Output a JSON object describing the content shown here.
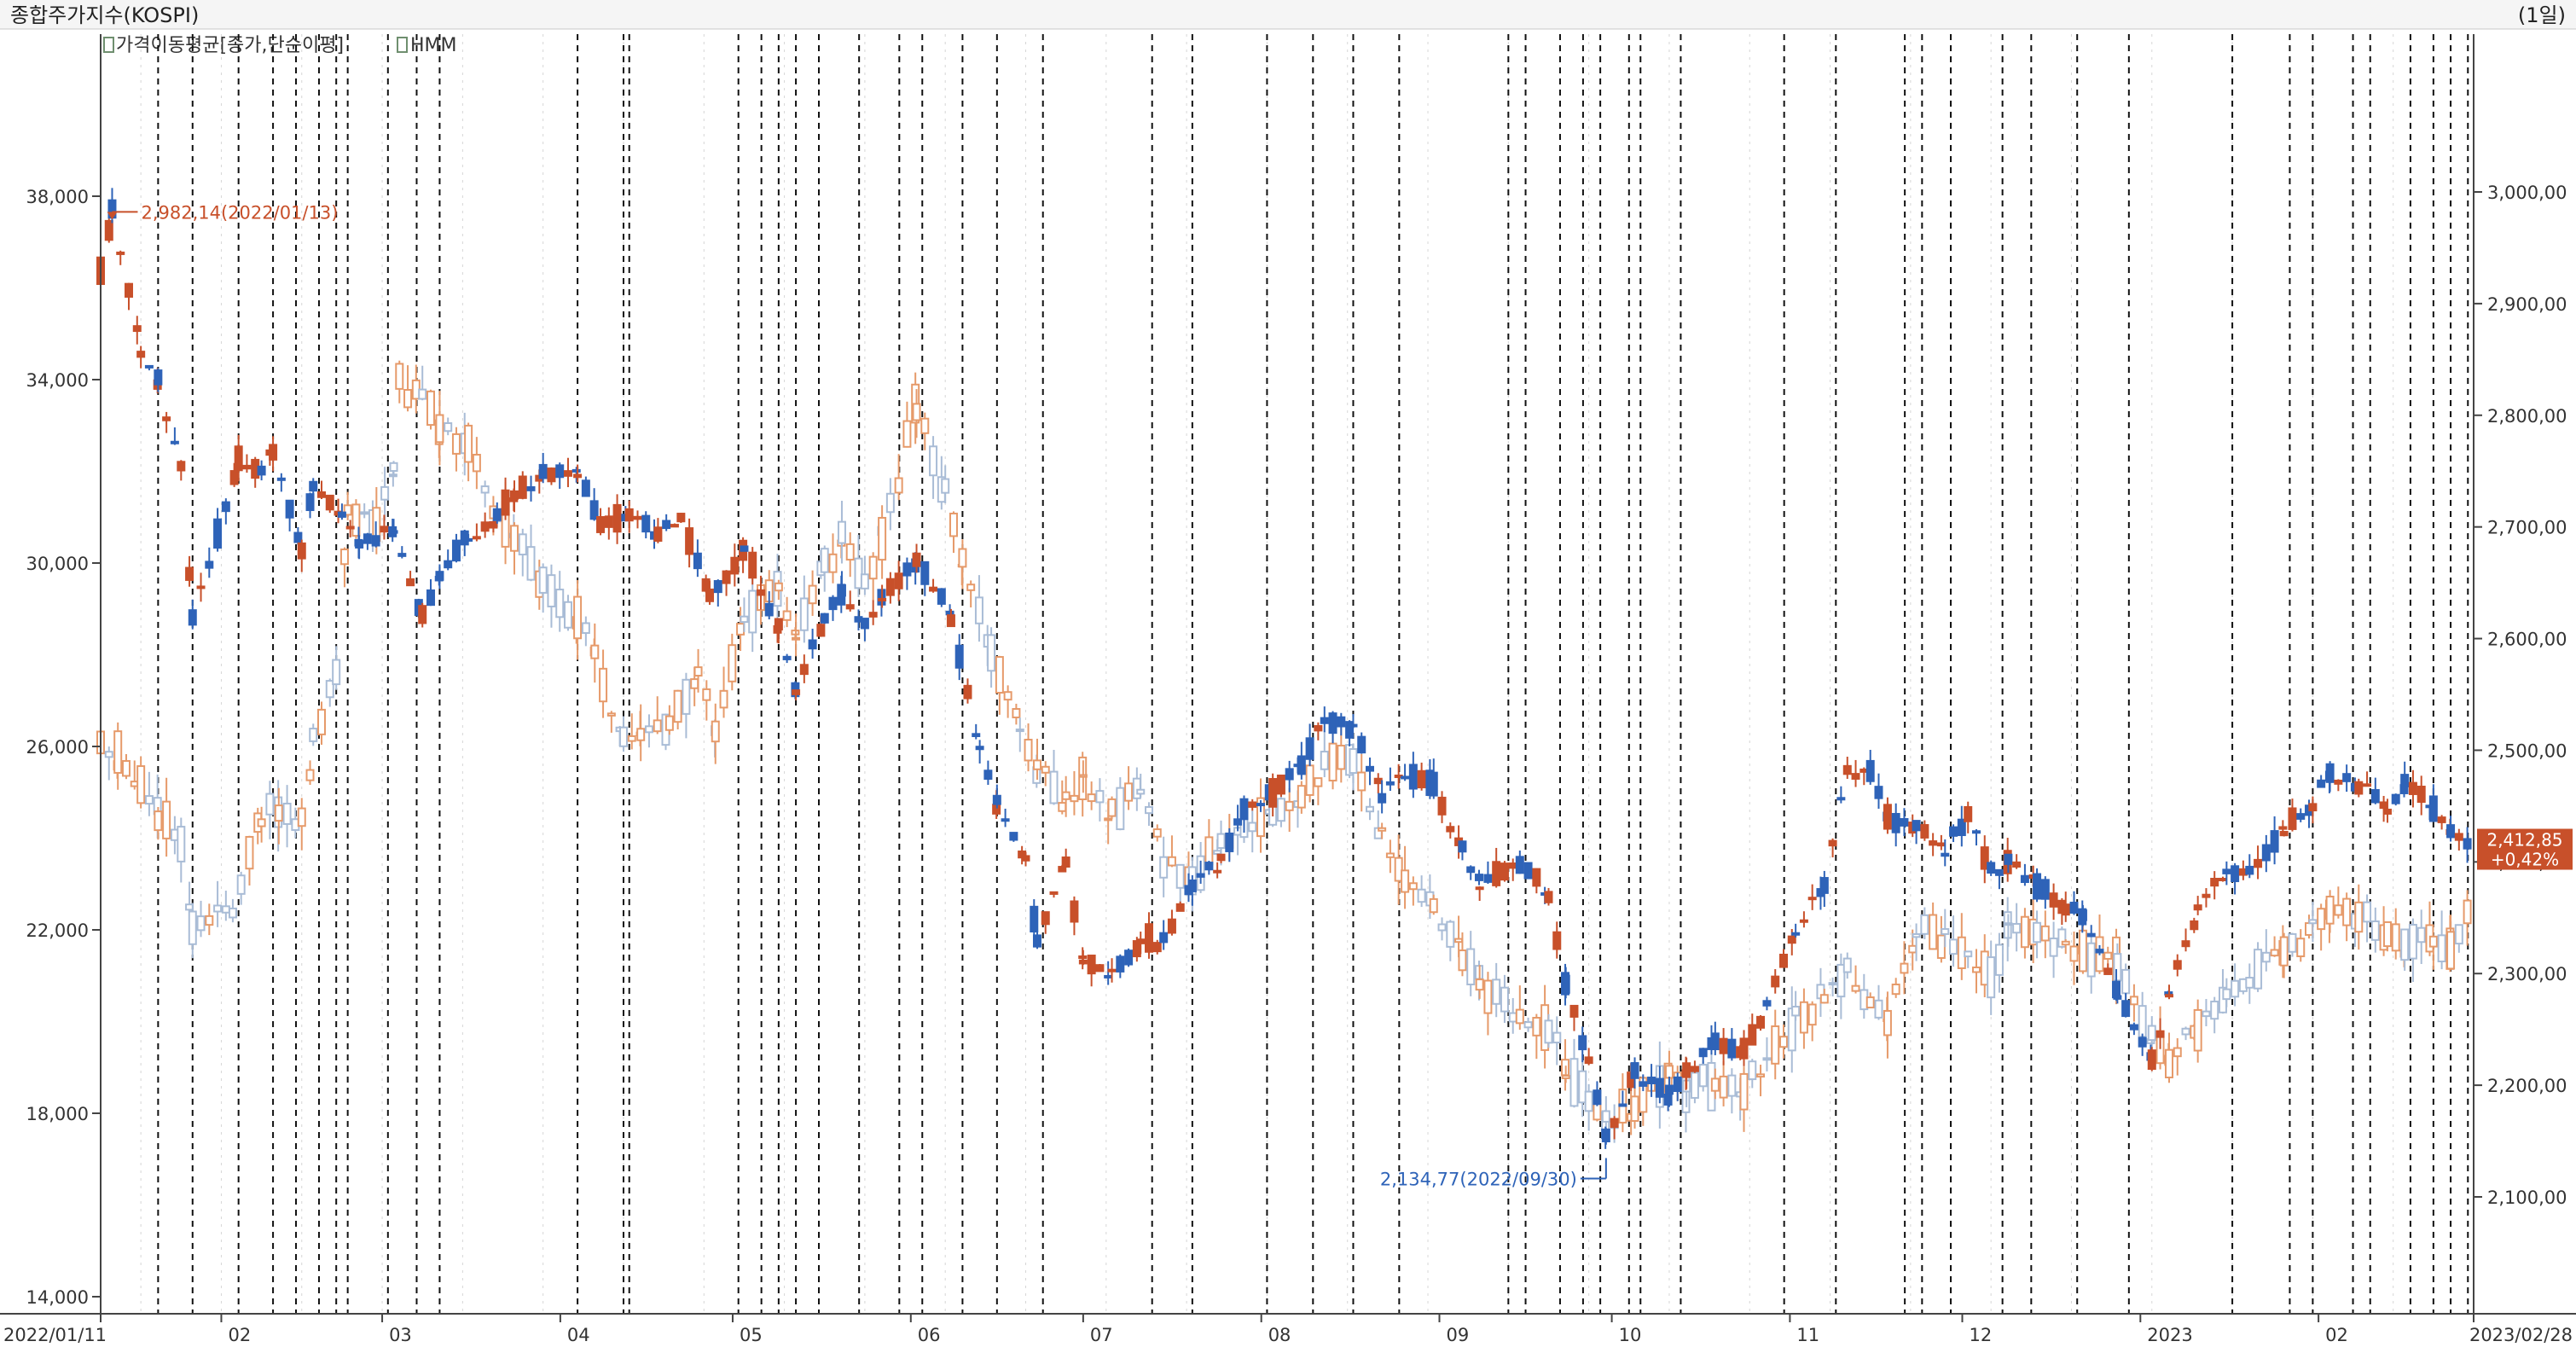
{
  "header": {
    "title": "종합주가지수(KOSPI)",
    "period": "(1일)"
  },
  "legend": {
    "items": [
      {
        "label": "가격이동평균[종가,단순이평]",
        "color": "#8aa0b8"
      },
      {
        "label": "HMM",
        "color": "#8aa0b8"
      }
    ]
  },
  "colors": {
    "up": "#c8502a",
    "down": "#2e63b8",
    "hmm_up": "#e69a6a",
    "hmm_down": "#a9bcd6",
    "event_line": "#111111",
    "grid_line": "#d6d6d6"
  },
  "chart_data": {
    "type": "line",
    "title": "종합주가지수(KOSPI)",
    "x_start": "2022/01/11",
    "x_end": "2023/02/28",
    "x_labels": [
      "2022/01/11",
      "02",
      "03",
      "04",
      "05",
      "06",
      "07",
      "08",
      "09",
      "10",
      "11",
      "12",
      "2023",
      "02",
      "2023/02/28"
    ],
    "left_axis": {
      "ticks": [
        "38,000",
        "34,000",
        "30,000",
        "26,000",
        "22,000",
        "18,000",
        "14,000"
      ],
      "ylim": [
        14000,
        38000
      ]
    },
    "right_axis": {
      "ticks": [
        "3,000,00",
        "2,900,00",
        "2,800,00",
        "2,700,00",
        "2,600,00",
        "2,500,00",
        "2,400,00",
        "2,300,00",
        "2,200,00",
        "2,100,00"
      ],
      "ylim": [
        2100,
        3000
      ]
    },
    "annotations": {
      "high": {
        "label": "2,982,14(2022/01/13)",
        "date": "2022/01/13",
        "value": 2982.14
      },
      "low": {
        "label": "2,134,77(2022/09/30)",
        "date": "2022/09/30",
        "value": 2134.77
      },
      "last": {
        "value": "2,412,85",
        "change": "+0,42%"
      }
    },
    "series": [
      {
        "name": "종합주가지수(KOSPI)",
        "axis": "right",
        "points": [
          [
            "2022/01/11",
            2927
          ],
          [
            "2022/01/13",
            2982
          ],
          [
            "2022/01/18",
            2860
          ],
          [
            "2022/01/21",
            2830
          ],
          [
            "2022/01/25",
            2750
          ],
          [
            "2022/01/27",
            2620
          ],
          [
            "2022/02/04",
            2760
          ],
          [
            "2022/02/08",
            2750
          ],
          [
            "2022/02/10",
            2770
          ],
          [
            "2022/02/15",
            2680
          ],
          [
            "2022/02/17",
            2740
          ],
          [
            "2022/02/22",
            2710
          ],
          [
            "2022/02/25",
            2680
          ],
          [
            "2022/03/03",
            2700
          ],
          [
            "2022/03/08",
            2620
          ],
          [
            "2022/03/11",
            2660
          ],
          [
            "2022/03/16",
            2690
          ],
          [
            "2022/03/21",
            2710
          ],
          [
            "2022/03/24",
            2730
          ],
          [
            "2022/03/29",
            2745
          ],
          [
            "2022/04/04",
            2750
          ],
          [
            "2022/04/08",
            2700
          ],
          [
            "2022/04/13",
            2710
          ],
          [
            "2022/04/18",
            2695
          ],
          [
            "2022/04/22",
            2705
          ],
          [
            "2022/04/27",
            2640
          ],
          [
            "2022/05/03",
            2680
          ],
          [
            "2022/05/09",
            2610
          ],
          [
            "2022/05/12",
            2550
          ],
          [
            "2022/05/17",
            2620
          ],
          [
            "2022/05/20",
            2640
          ],
          [
            "2022/05/24",
            2610
          ],
          [
            "2022/05/27",
            2640
          ],
          [
            "2022/06/02",
            2670
          ],
          [
            "2022/06/08",
            2620
          ],
          [
            "2022/06/13",
            2500
          ],
          [
            "2022/06/16",
            2450
          ],
          [
            "2022/06/21",
            2400
          ],
          [
            "2022/06/23",
            2330
          ],
          [
            "2022/06/28",
            2400
          ],
          [
            "2022/07/01",
            2310
          ],
          [
            "2022/07/06",
            2300
          ],
          [
            "2022/07/11",
            2330
          ],
          [
            "2022/07/15",
            2330
          ],
          [
            "2022/07/20",
            2380
          ],
          [
            "2022/07/25",
            2400
          ],
          [
            "2022/07/29",
            2450
          ],
          [
            "2022/08/03",
            2460
          ],
          [
            "2022/08/08",
            2490
          ],
          [
            "2022/08/12",
            2525
          ],
          [
            "2022/08/17",
            2520
          ],
          [
            "2022/08/22",
            2460
          ],
          [
            "2022/08/26",
            2480
          ],
          [
            "2022/08/31",
            2470
          ],
          [
            "2022/09/05",
            2410
          ],
          [
            "2022/09/08",
            2380
          ],
          [
            "2022/09/15",
            2400
          ],
          [
            "2022/09/20",
            2370
          ],
          [
            "2022/09/23",
            2290
          ],
          [
            "2022/09/27",
            2220
          ],
          [
            "2022/09/30",
            2155
          ],
          [
            "2022/10/05",
            2210
          ],
          [
            "2022/10/11",
            2190
          ],
          [
            "2022/10/14",
            2210
          ],
          [
            "2022/10/19",
            2240
          ],
          [
            "2022/10/24",
            2230
          ],
          [
            "2022/10/28",
            2270
          ],
          [
            "2022/11/02",
            2340
          ],
          [
            "2022/11/07",
            2380
          ],
          [
            "2022/11/11",
            2480
          ],
          [
            "2022/11/15",
            2480
          ],
          [
            "2022/11/18",
            2440
          ],
          [
            "2022/11/23",
            2430
          ],
          [
            "2022/11/28",
            2410
          ],
          [
            "2022/12/02",
            2440
          ],
          [
            "2022/12/06",
            2390
          ],
          [
            "2022/12/09",
            2400
          ],
          [
            "2022/12/14",
            2380
          ],
          [
            "2022/12/19",
            2360
          ],
          [
            "2022/12/22",
            2350
          ],
          [
            "2022/12/28",
            2280
          ],
          [
            "2023/01/03",
            2220
          ],
          [
            "2023/01/06",
            2280
          ],
          [
            "2023/01/11",
            2360
          ],
          [
            "2023/01/16",
            2390
          ],
          [
            "2023/01/20",
            2395
          ],
          [
            "2023/01/26",
            2430
          ],
          [
            "2023/01/31",
            2450
          ],
          [
            "2023/02/03",
            2480
          ],
          [
            "2023/02/08",
            2470
          ],
          [
            "2023/02/13",
            2450
          ],
          [
            "2023/02/16",
            2470
          ],
          [
            "2023/02/21",
            2450
          ],
          [
            "2023/02/24",
            2425
          ],
          [
            "2023/02/28",
            2413
          ]
        ]
      },
      {
        "name": "HMM",
        "axis": "left",
        "points": [
          [
            "2022/01/11",
            26000
          ],
          [
            "2022/01/14",
            25800
          ],
          [
            "2022/01/18",
            25100
          ],
          [
            "2022/01/21",
            24500
          ],
          [
            "2022/01/25",
            24000
          ],
          [
            "2022/01/27",
            22000
          ],
          [
            "2022/02/03",
            22500
          ],
          [
            "2022/02/08",
            24500
          ],
          [
            "2022/02/11",
            24600
          ],
          [
            "2022/02/15",
            24400
          ],
          [
            "2022/02/17",
            26000
          ],
          [
            "2022/02/21",
            27500
          ],
          [
            "2022/02/23",
            31000
          ],
          [
            "2022/02/28",
            30800
          ],
          [
            "2022/03/03",
            32000
          ],
          [
            "2022/03/04",
            34000
          ],
          [
            "2022/03/08",
            33500
          ],
          [
            "2022/03/11",
            33000
          ],
          [
            "2022/03/16",
            32500
          ],
          [
            "2022/03/21",
            31000
          ],
          [
            "2022/03/24",
            30500
          ],
          [
            "2022/03/29",
            29500
          ],
          [
            "2022/04/04",
            28800
          ],
          [
            "2022/04/07",
            28000
          ],
          [
            "2022/04/12",
            26000
          ],
          [
            "2022/04/15",
            26300
          ],
          [
            "2022/04/20",
            26500
          ],
          [
            "2022/04/25",
            27500
          ],
          [
            "2022/04/28",
            26500
          ],
          [
            "2022/05/03",
            28800
          ],
          [
            "2022/05/09",
            29500
          ],
          [
            "2022/05/12",
            28500
          ],
          [
            "2022/05/17",
            30000
          ],
          [
            "2022/05/20",
            30500
          ],
          [
            "2022/05/24",
            29500
          ],
          [
            "2022/05/27",
            30500
          ],
          [
            "2022/06/02",
            33500
          ],
          [
            "2022/06/07",
            31500
          ],
          [
            "2022/06/10",
            30000
          ],
          [
            "2022/06/15",
            28000
          ],
          [
            "2022/06/20",
            26500
          ],
          [
            "2022/06/23",
            25500
          ],
          [
            "2022/06/28",
            24800
          ],
          [
            "2022/07/01",
            25300
          ],
          [
            "2022/07/06",
            24500
          ],
          [
            "2022/07/11",
            25200
          ],
          [
            "2022/07/15",
            23500
          ],
          [
            "2022/07/20",
            23000
          ],
          [
            "2022/07/25",
            24000
          ],
          [
            "2022/07/29",
            24300
          ],
          [
            "2022/08/03",
            24500
          ],
          [
            "2022/08/08",
            25000
          ],
          [
            "2022/08/12",
            25500
          ],
          [
            "2022/08/17",
            25800
          ],
          [
            "2022/08/22",
            24000
          ],
          [
            "2022/08/26",
            23000
          ],
          [
            "2022/08/31",
            22500
          ],
          [
            "2022/09/05",
            21500
          ],
          [
            "2022/09/08",
            20800
          ],
          [
            "2022/09/15",
            20000
          ],
          [
            "2022/09/20",
            19800
          ],
          [
            "2022/09/23",
            19000
          ],
          [
            "2022/09/27",
            18300
          ],
          [
            "2022/09/30",
            17800
          ],
          [
            "2022/10/05",
            18200
          ],
          [
            "2022/10/11",
            18800
          ],
          [
            "2022/10/14",
            18500
          ],
          [
            "2022/10/19",
            18700
          ],
          [
            "2022/10/24",
            18400
          ],
          [
            "2022/10/28",
            19200
          ],
          [
            "2022/11/02",
            20000
          ],
          [
            "2022/11/07",
            20500
          ],
          [
            "2022/11/11",
            21000
          ],
          [
            "2022/11/15",
            20500
          ],
          [
            "2022/11/18",
            20000
          ],
          [
            "2022/11/23",
            22000
          ],
          [
            "2022/11/28",
            21800
          ],
          [
            "2022/12/02",
            21500
          ],
          [
            "2022/12/06",
            21000
          ],
          [
            "2022/12/09",
            22000
          ],
          [
            "2022/12/14",
            21800
          ],
          [
            "2022/12/19",
            21600
          ],
          [
            "2022/12/22",
            21500
          ],
          [
            "2022/12/28",
            21200
          ],
          [
            "2023/01/03",
            19500
          ],
          [
            "2023/01/06",
            19200
          ],
          [
            "2023/01/11",
            19800
          ],
          [
            "2023/01/16",
            20500
          ],
          [
            "2023/01/20",
            21000
          ],
          [
            "2023/01/26",
            21500
          ],
          [
            "2023/01/31",
            22000
          ],
          [
            "2023/02/03",
            22500
          ],
          [
            "2023/02/08",
            22300
          ],
          [
            "2023/02/13",
            21800
          ],
          [
            "2023/02/16",
            21700
          ],
          [
            "2023/02/21",
            21800
          ],
          [
            "2023/02/24",
            21500
          ],
          [
            "2023/02/28",
            22800
          ]
        ]
      }
    ],
    "event_lines": [
      "2022/01/21",
      "2022/01/27",
      "2022/02/04",
      "2022/02/10",
      "2022/02/14",
      "2022/02/18",
      "2022/02/21",
      "2022/02/23",
      "2022/03/02",
      "2022/03/07",
      "2022/03/11",
      "2022/04/04",
      "2022/04/12",
      "2022/04/13",
      "2022/05/02",
      "2022/05/06",
      "2022/05/09",
      "2022/05/12",
      "2022/05/16",
      "2022/05/23",
      "2022/05/30",
      "2022/06/03",
      "2022/06/10",
      "2022/06/16",
      "2022/06/24",
      "2022/07/13",
      "2022/07/20",
      "2022/08/02",
      "2022/08/10",
      "2022/08/17",
      "2022/08/25",
      "2022/09/13",
      "2022/09/16",
      "2022/09/22",
      "2022/09/26",
      "2022/09/29",
      "2022/10/04",
      "2022/10/06",
      "2022/10/13",
      "2022/10/31",
      "2022/11/09",
      "2022/11/21",
      "2022/11/24",
      "2022/11/29",
      "2022/12/08",
      "2022/12/13",
      "2022/12/21",
      "2022/12/30",
      "2023/01/17",
      "2023/01/27",
      "2023/01/31",
      "2023/02/07",
      "2023/02/10",
      "2023/02/17",
      "2023/02/21",
      "2023/02/24",
      "2023/02/27"
    ]
  }
}
